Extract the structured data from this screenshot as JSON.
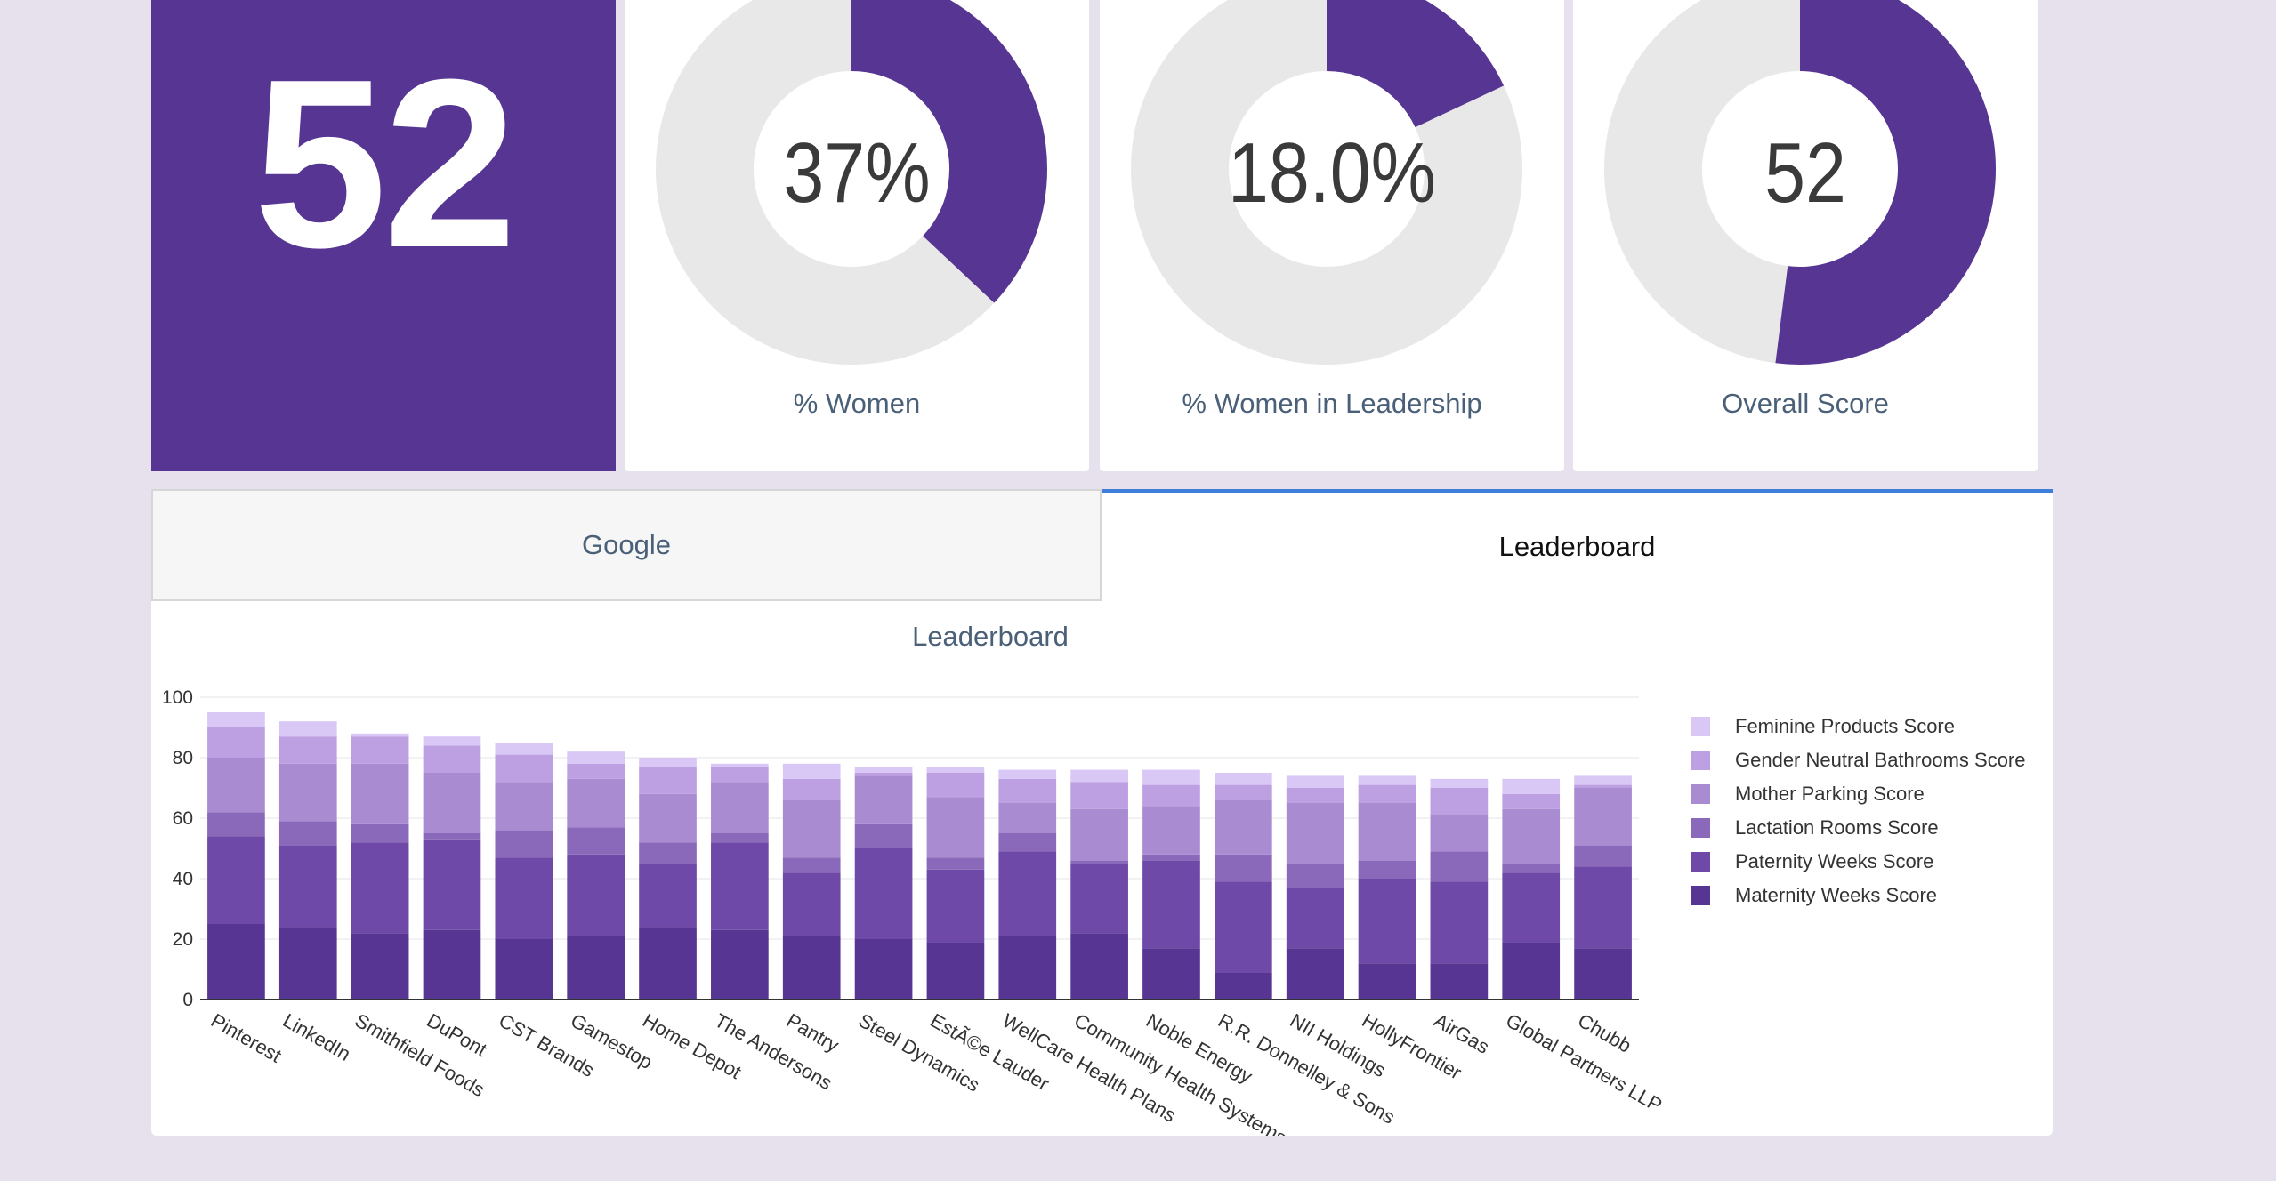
{
  "kpis": {
    "big_score": "52",
    "donuts": [
      {
        "value_text": "37%",
        "fraction": 0.37,
        "label": "% Women"
      },
      {
        "value_text": "18.0%",
        "fraction": 0.18,
        "label": "% Women in Leadership"
      },
      {
        "value_text": "52",
        "fraction": 0.52,
        "label": "Overall Score"
      }
    ]
  },
  "tabs": [
    {
      "label": "Google",
      "active": false
    },
    {
      "label": "Leaderboard",
      "active": true
    }
  ],
  "panel": {
    "title": "Leaderboard"
  },
  "colors": {
    "primary": "#573593",
    "donut_track": "#e8e8e8",
    "tab_active_border": "#3e7fdc"
  },
  "chart_data": {
    "type": "bar",
    "stacked": true,
    "title": "",
    "xlabel": "",
    "ylabel": "",
    "ylim": [
      0,
      100
    ],
    "yticks": [
      0,
      20,
      40,
      60,
      80,
      100
    ],
    "grid": true,
    "legend_position": "right",
    "categories": [
      "Pinterest",
      "LinkedIn",
      "Smithfield Foods",
      "DuPont",
      "CST Brands",
      "Gamestop",
      "Home Depot",
      "The Andersons",
      "Pantry",
      "Steel Dynamics",
      "EstÃ©e Lauder",
      "WellCare Health Plans",
      "Community Health Systems",
      "Noble Energy",
      "R.R. Donnelley & Sons",
      "NII Holdings",
      "HollyFrontier",
      "AirGas",
      "Global Partners LLP",
      "Chubb"
    ],
    "series": [
      {
        "name": "Maternity Weeks Score",
        "color": "#573593",
        "values": [
          25,
          24,
          22,
          23,
          20,
          21,
          24,
          23,
          21,
          20,
          19,
          21,
          22,
          17,
          9,
          17,
          12,
          12,
          19,
          17
        ]
      },
      {
        "name": "Paternity Weeks Score",
        "color": "#6e49a7",
        "values": [
          29,
          27,
          30,
          30,
          27,
          27,
          21,
          29,
          21,
          30,
          24,
          28,
          23,
          29,
          30,
          20,
          28,
          27,
          23,
          27
        ]
      },
      {
        "name": "Lactation Rooms Score",
        "color": "#8a69ba",
        "values": [
          8,
          8,
          6,
          2,
          9,
          9,
          7,
          3,
          5,
          8,
          4,
          6,
          1,
          2,
          9,
          8,
          6,
          10,
          3,
          7
        ]
      },
      {
        "name": "Mother Parking Score",
        "color": "#a98bd2",
        "values": [
          18,
          19,
          20,
          20,
          16,
          16,
          16,
          17,
          19,
          16,
          20,
          10,
          17,
          16,
          18,
          20,
          19,
          12,
          18,
          19
        ]
      },
      {
        "name": "Gender Neutral Bathrooms Score",
        "color": "#bca0e2",
        "values": [
          10,
          9,
          9,
          9,
          9,
          5,
          9,
          5,
          7,
          1,
          8,
          8,
          9,
          7,
          5,
          5,
          6,
          9,
          5,
          1
        ]
      },
      {
        "name": "Feminine Products Score",
        "color": "#d9c7f5",
        "values": [
          5,
          5,
          1,
          3,
          4,
          4,
          3,
          1,
          5,
          2,
          2,
          3,
          4,
          5,
          4,
          4,
          3,
          3,
          5,
          3
        ]
      }
    ]
  }
}
